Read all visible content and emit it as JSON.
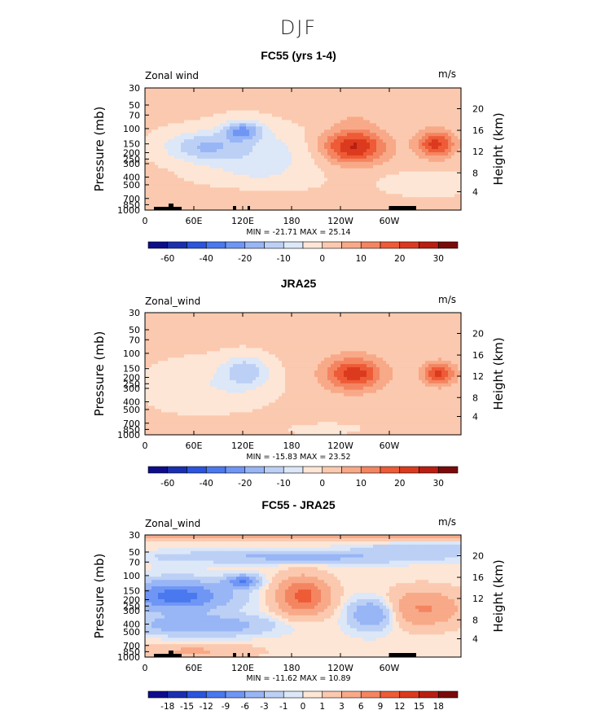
{
  "figure_title": "DJF",
  "chart_data": [
    {
      "type": "heatmap",
      "title": "FC55 (yrs 1-4)",
      "variable_label": "Zonal wind",
      "units": "m/s",
      "ylabel": "Pressure (mb)",
      "ylabel_right": "Height (km)",
      "x_ticks": [
        "0",
        "60E",
        "120E",
        "180",
        "120W",
        "60W"
      ],
      "y_ticks": [
        "30",
        "50",
        "70",
        "100",
        "150",
        "200",
        "250",
        "300",
        "400",
        "500",
        "700",
        "850",
        "1000"
      ],
      "height_ticks": [
        "20",
        "16",
        "12",
        "8",
        "4"
      ],
      "stats": "MIN = -21.71   MAX =  25.14",
      "min": -21.71,
      "max": 25.14,
      "colorbar_labels": [
        "-60",
        "-40",
        "-20",
        "-10",
        "0",
        "10",
        "20",
        "30"
      ]
    },
    {
      "type": "heatmap",
      "title": "JRA25",
      "variable_label": "Zonal_wind",
      "units": "m/s",
      "ylabel": "Pressure (mb)",
      "ylabel_right": "Height (km)",
      "x_ticks": [
        "0",
        "60E",
        "120E",
        "180",
        "120W",
        "60W"
      ],
      "y_ticks": [
        "30",
        "50",
        "70",
        "100",
        "150",
        "200",
        "250",
        "300",
        "400",
        "500",
        "700",
        "850",
        "1000"
      ],
      "height_ticks": [
        "20",
        "16",
        "12",
        "8",
        "4"
      ],
      "stats": "MIN = -15.83   MAX =  23.52",
      "min": -15.83,
      "max": 23.52,
      "colorbar_labels": [
        "-60",
        "-40",
        "-20",
        "-10",
        "0",
        "10",
        "20",
        "30"
      ]
    },
    {
      "type": "heatmap",
      "title": "FC55 - JRA25",
      "variable_label": "Zonal_wind",
      "units": "m/s",
      "ylabel": "Pressure (mb)",
      "ylabel_right": "Height (km)",
      "x_ticks": [
        "0",
        "60E",
        "120E",
        "180",
        "120W",
        "60W"
      ],
      "y_ticks": [
        "30",
        "50",
        "70",
        "100",
        "150",
        "200",
        "250",
        "300",
        "400",
        "500",
        "700",
        "850",
        "1000"
      ],
      "height_ticks": [
        "20",
        "16",
        "12",
        "8",
        "4"
      ],
      "stats": "MIN = -11.62   MAX =  10.89",
      "min": -11.62,
      "max": 10.89,
      "colorbar_labels": [
        "-18",
        "-15",
        "-12",
        "-9",
        "-6",
        "-3",
        "-1",
        "0",
        "1",
        "3",
        "6",
        "9",
        "12",
        "15",
        "18"
      ]
    }
  ],
  "palette": [
    "#0d0d8c",
    "#1a2fb0",
    "#2b55dc",
    "#4a78ef",
    "#6f96f5",
    "#98b5f5",
    "#bcd0f6",
    "#dce7f8",
    "#fde6d6",
    "#fbc9af",
    "#f8a988",
    "#f48561",
    "#ee5b37",
    "#dc3a1e",
    "#b91e12",
    "#7a0a0a"
  ]
}
